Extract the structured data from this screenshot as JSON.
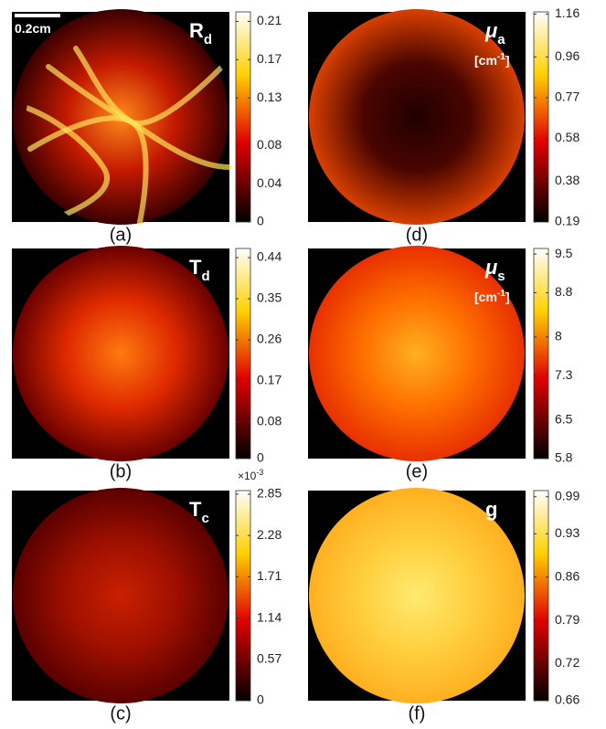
{
  "scale_bar": "0.2cm",
  "panels": [
    {
      "caption": "(a)",
      "label": {
        "symbol": "R",
        "subscript": "d"
      },
      "colorbar": {
        "lim": [
          0,
          0.22
        ],
        "ticks": [
          0,
          0.04,
          0.08,
          0.13,
          0.17,
          0.21
        ]
      }
    },
    {
      "caption": "(b)",
      "label": {
        "symbol": "T",
        "subscript": "d"
      },
      "colorbar": {
        "lim": [
          0,
          0.46
        ],
        "ticks": [
          0,
          0.08,
          0.17,
          0.26,
          0.35,
          0.44
        ]
      }
    },
    {
      "caption": "(c)",
      "label": {
        "symbol": "T",
        "subscript": "c"
      },
      "colorbar": {
        "lim": [
          0,
          2.9
        ],
        "ticks": [
          0,
          0.57,
          1.14,
          1.71,
          2.28,
          2.85
        ],
        "multiplier": {
          "base": "×10",
          "exponent": "-3"
        }
      }
    },
    {
      "caption": "(d)",
      "label": {
        "symbol": "μ",
        "subscript": "a",
        "unit_prefix": "[cm",
        "unit_sup": "-1",
        "unit_suffix": "]"
      },
      "colorbar": {
        "lim": [
          0.19,
          1.17
        ],
        "ticks": [
          0.19,
          0.38,
          0.58,
          0.77,
          0.96,
          1.16
        ]
      }
    },
    {
      "caption": "(e)",
      "label": {
        "symbol": "μ",
        "subscript": "s",
        "unit_prefix": "[cm",
        "unit_sup": "-1",
        "unit_suffix": "]"
      },
      "colorbar": {
        "lim": [
          5.8,
          9.6
        ],
        "ticks": [
          5.8,
          6.5,
          7.3,
          8,
          8.8,
          9.5
        ]
      }
    },
    {
      "caption": "(f)",
      "label": {
        "symbol": "g"
      },
      "colorbar": {
        "lim": [
          0.66,
          1.0
        ],
        "ticks": [
          0.66,
          0.72,
          0.79,
          0.86,
          0.93,
          0.99
        ]
      }
    }
  ]
}
